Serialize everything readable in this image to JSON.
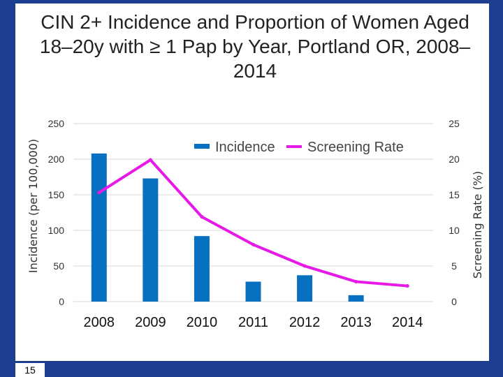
{
  "slide": {
    "page_number": "15"
  },
  "chart_data": {
    "type": "bar+line",
    "title": "CIN 2+ Incidence and Proportion of Women Aged 18–20y with ≥ 1 Pap by Year, Portland OR, 2008–2014",
    "categories": [
      "2008",
      "2009",
      "2010",
      "2011",
      "2012",
      "2013",
      "2014"
    ],
    "series": [
      {
        "name": "Incidence",
        "type": "bar",
        "axis": "left",
        "values": [
          208,
          173,
          92,
          28,
          37,
          9,
          0
        ]
      },
      {
        "name": "Screening Rate",
        "type": "line",
        "axis": "right",
        "values": [
          15.3,
          19.9,
          11.9,
          8.0,
          5.0,
          2.8,
          2.2
        ]
      }
    ],
    "y_left": {
      "label": "Incidence (per 100,000)",
      "ylim": [
        0,
        250
      ],
      "ticks": [
        "0",
        "50",
        "100",
        "150",
        "200",
        "250"
      ]
    },
    "y_right": {
      "label": "Screening Rate (%)",
      "ylim": [
        0,
        25
      ],
      "ticks": [
        "0",
        "5",
        "10",
        "15",
        "20",
        "25"
      ]
    },
    "legend": {
      "position": "top-right",
      "items": [
        "Incidence",
        "Screening Rate"
      ]
    },
    "colors": {
      "bar": "#0870c1",
      "line": "#e619e6",
      "grid": "#d9d9d9"
    }
  }
}
